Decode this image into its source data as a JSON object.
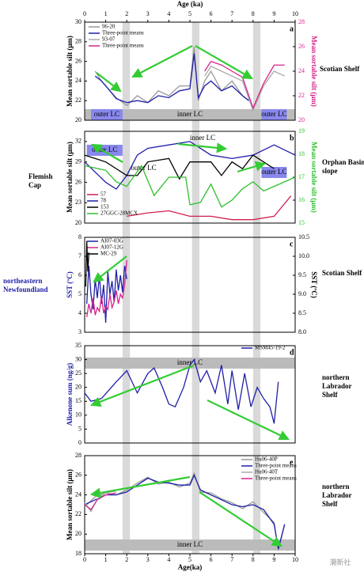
{
  "axis": {
    "title": "Age (ka)",
    "xlabel": "Age(ka)",
    "xlim": [
      0,
      10
    ],
    "xticks": [
      0,
      1,
      2,
      3,
      4,
      5,
      6,
      7,
      8,
      9,
      10
    ]
  },
  "watermark": "潮新社",
  "chart_data": [
    {
      "type": "line",
      "letter": "a",
      "ylabel": "Mean sortable silt (μm)",
      "ylabel_color": "#000000",
      "y2label": "Mean sortable silt (μm)",
      "y2label_color": "#d6248c",
      "side_label": "Scotian Shelf",
      "ylim": [
        20,
        30
      ],
      "yticks": [
        20,
        22,
        24,
        26,
        28,
        30
      ],
      "y2lim": [
        20,
        28
      ],
      "y2ticks": [
        20,
        22,
        24,
        26,
        28
      ],
      "annotations": [
        "outer LC",
        "inner LC",
        "outer LC"
      ],
      "series": [
        {
          "name": "96-20",
          "color": "#999999",
          "x": [
            0.5,
            0.8,
            1.2,
            1.5,
            2,
            2.5,
            3,
            3.5,
            4,
            4.5,
            5,
            5.2,
            5.4,
            5.7,
            6,
            6.5,
            7,
            7.5,
            7.8
          ],
          "values": [
            25,
            24,
            23,
            22.3,
            21.5,
            22.5,
            21.8,
            23,
            22.5,
            23.5,
            23.5,
            27.5,
            22,
            24,
            25,
            23,
            24,
            22.5,
            22
          ]
        },
        {
          "name": "Three-point means",
          "color": "#1f1fa8",
          "x": [
            0.5,
            0.8,
            1.2,
            1.5,
            2,
            2.5,
            3,
            3.5,
            4,
            4.5,
            5,
            5.2,
            5.4,
            5.7,
            6,
            6.5,
            7,
            7.5,
            7.8
          ],
          "values": [
            24.5,
            24,
            23,
            22.2,
            21.8,
            22,
            21.8,
            22.5,
            22.3,
            23,
            23.2,
            26.8,
            22.3,
            23.5,
            24,
            23,
            23.5,
            22.5,
            22
          ]
        },
        {
          "name": "93-07",
          "color": "#aaaaaa",
          "x": [
            5.7,
            6,
            6.5,
            7,
            7.5,
            8,
            8.5,
            9,
            9.5
          ],
          "values": [
            24.5,
            25.5,
            25,
            24.5,
            24,
            21,
            23.5,
            25,
            24.5
          ]
        },
        {
          "name": "Three-point means",
          "color": "#d6248c",
          "axis": "y2",
          "x": [
            5.7,
            6,
            6.5,
            7,
            7.5,
            8,
            8.5,
            9,
            9.5
          ],
          "values": [
            24,
            24.8,
            24.5,
            24,
            23.5,
            21,
            23,
            24.5,
            24.5
          ]
        }
      ]
    },
    {
      "type": "line",
      "letter": "b",
      "ylabel": "Mean sortable silt (μm)",
      "ylabel_color": "#000000",
      "y2label": "Mean sortable silt (μm)",
      "y2label_color": "#2fbf2f",
      "side_label": "Orphan Basin slope",
      "left_label": "Flemish Cap",
      "ylim": [
        20,
        33.5
      ],
      "yticks": [
        20,
        23,
        26,
        29,
        32
      ],
      "y2lim": [
        15,
        19
      ],
      "y2ticks": [
        15,
        16,
        17,
        18,
        19
      ],
      "annotations": [
        "outer LC",
        "inner LC",
        "outer LC",
        "outer LC"
      ],
      "series": [
        {
          "name": "57",
          "color": "#d02050",
          "x": [
            2,
            3,
            4,
            5,
            6,
            7,
            8,
            9,
            9.8
          ],
          "values": [
            21,
            21.5,
            21.8,
            21,
            21,
            20.5,
            20.5,
            21,
            24
          ]
        },
        {
          "name": "78",
          "color": "#1f1fa8",
          "x": [
            0,
            1,
            1.5,
            2,
            2.5,
            3,
            4,
            5,
            6,
            7,
            8,
            9,
            10
          ],
          "values": [
            29,
            26,
            25,
            27,
            30,
            31,
            31.5,
            32,
            30,
            29.5,
            30,
            31.5,
            30
          ]
        },
        {
          "name": "153",
          "color": "#000000",
          "x": [
            0,
            1,
            1.5,
            2,
            2.5,
            3,
            4,
            4.5,
            5,
            6,
            6.5,
            7,
            7.5,
            8,
            8.5,
            9
          ],
          "values": [
            30,
            29,
            28,
            27,
            27,
            29,
            29.5,
            26.5,
            29,
            29,
            27,
            29,
            28,
            30,
            29,
            28
          ]
        },
        {
          "name": "27GGC-28MCX",
          "color": "#2fbf2f",
          "axis": "y2",
          "x": [
            0,
            1,
            1.5,
            2,
            2.7,
            3.3,
            4,
            4.8,
            5,
            5.5,
            6,
            6.5,
            7,
            7.5,
            8,
            8.5,
            9,
            10
          ],
          "values": [
            17.5,
            17.3,
            16.8,
            16.6,
            17.5,
            16.2,
            17,
            17,
            15.8,
            15.9,
            16.7,
            15.7,
            16,
            16.5,
            16.8,
            16.4,
            16.6,
            17
          ]
        }
      ]
    },
    {
      "type": "line",
      "letter": "c",
      "ylabel": "SST (ºC)",
      "ylabel_color": "#1f1fa8",
      "y2label": "SST (ºC)",
      "y2label_color": "#000000",
      "side_label": "Scotian Shelf",
      "left_label": "northeastern Newfoundland",
      "ylim": [
        3,
        8
      ],
      "yticks": [
        3,
        4,
        5,
        6,
        7,
        8
      ],
      "y2lim": [
        8,
        10.5
      ],
      "y2ticks": [
        {
          "value": 8,
          "label": "8.0"
        },
        {
          "value": 8.5,
          "label": "8.5"
        },
        {
          "value": 9,
          "label": "9.0"
        },
        {
          "value": 9.5,
          "label": "9.5"
        },
        {
          "value": 10,
          "label": "10.0"
        },
        {
          "value": 10.5,
          "label": "10.5"
        }
      ],
      "annotations": [],
      "series": [
        {
          "name": "AI07-03G",
          "color": "#1f1fa8",
          "x": [
            0.1,
            0.2,
            0.3,
            0.4,
            0.5,
            0.6,
            0.7,
            0.8,
            0.9,
            1,
            1.1,
            1.2,
            1.3,
            1.4,
            1.5,
            1.6,
            1.7,
            1.8,
            1.9,
            2
          ],
          "values": [
            4.5,
            6.5,
            5,
            4.2,
            5.8,
            4.8,
            6,
            4.5,
            5.5,
            3.5,
            6.2,
            5,
            5.7,
            4.6,
            6.3,
            5.2,
            6,
            5.1,
            6.5,
            5.8
          ]
        },
        {
          "name": "AI07-12G",
          "color": "#d6248c",
          "x": [
            0.1,
            0.2,
            0.3,
            0.4,
            0.5,
            0.6,
            0.7,
            0.8,
            0.9,
            1,
            1.1,
            1.2,
            1.3,
            1.4,
            1.5,
            1.6,
            1.7,
            1.8,
            1.9,
            2
          ],
          "values": [
            3.8,
            4.5,
            4,
            4.8,
            3.9,
            4.3,
            4.1,
            4.9,
            4,
            4.4,
            4.2,
            5,
            4.3,
            4.6,
            5.2,
            4.5,
            5,
            4.8,
            5.5,
            6.8
          ]
        },
        {
          "name": "MC-29",
          "color": "#000000",
          "axis": "y2",
          "x": [
            0.05,
            0.1,
            0.15,
            0.2
          ],
          "values": [
            9.2,
            10.4,
            9.6,
            10.1
          ]
        }
      ]
    },
    {
      "type": "line",
      "letter": "d",
      "ylabel": "Alkenone sum (ng/g)",
      "ylabel_color": "#1f1fa8",
      "side_label": "northern Labrador Shelf",
      "ylim": [
        0,
        35
      ],
      "yticks": [
        0,
        5,
        10,
        15,
        20,
        25,
        30,
        35
      ],
      "annotations": [
        "inner LC"
      ],
      "series": [
        {
          "name": "MSM45-19-2",
          "color": "#1f1fa8",
          "x": [
            0,
            0.3,
            0.8,
            1.5,
            2,
            2.5,
            3,
            3.3,
            3.7,
            4,
            4.3,
            4.7,
            5,
            5.2,
            5.5,
            5.8,
            6.2,
            6.5,
            6.8,
            7,
            7.3,
            7.6,
            7.9,
            8.2,
            8.5,
            8.8,
            9,
            9.2
          ],
          "values": [
            18,
            15,
            16,
            22,
            26,
            18,
            25,
            27,
            20,
            14,
            13,
            20,
            28,
            30,
            22,
            26,
            18,
            28,
            14,
            26,
            12,
            25,
            13,
            20,
            16,
            13,
            7,
            22
          ]
        }
      ]
    },
    {
      "type": "line",
      "letter": "e",
      "ylabel": "Mean sortable silt (μm)",
      "ylabel_color": "#000000",
      "side_label": "northern Labrador Shelf",
      "ylim": [
        18,
        28
      ],
      "yticks": [
        18,
        20,
        22,
        24,
        26,
        28
      ],
      "annotations": [
        "inner LC"
      ],
      "series": [
        {
          "name": "Hu06-40P",
          "color": "#999999",
          "x": [
            0,
            0.5,
            1,
            1.5,
            2,
            2.5,
            3,
            3.5,
            4,
            4.5,
            5,
            5.2,
            5.5,
            6,
            6.5,
            7,
            7.5,
            8,
            8.5,
            9,
            9.2,
            9.5
          ],
          "values": [
            22.8,
            23.8,
            24.2,
            24,
            24.5,
            25.2,
            25.8,
            25.1,
            25.3,
            24.8,
            25.2,
            26.2,
            24.3,
            24.2,
            23.6,
            23.2,
            22.6,
            23.3,
            22.2,
            21.2,
            18.3,
            21
          ]
        },
        {
          "name": "Three-point means",
          "color": "#1f1fa8",
          "x": [
            0,
            0.5,
            1,
            1.5,
            2,
            2.5,
            3,
            3.5,
            4,
            4.5,
            5,
            5.2,
            5.5,
            6,
            6.5,
            7,
            7.5,
            8,
            8.5,
            9,
            9.2,
            9.5
          ],
          "values": [
            23,
            23.5,
            24,
            24,
            24.3,
            25,
            25.7,
            25.3,
            25.2,
            25,
            25,
            26,
            24.5,
            24,
            23.5,
            23,
            22.8,
            23,
            22.5,
            21,
            18.5,
            21
          ]
        },
        {
          "name": "Hu06-40T",
          "color": "#aaaaaa",
          "x": [
            0,
            0.3,
            0.6,
            1,
            1.5
          ],
          "values": [
            23.2,
            22.3,
            23.6,
            24.2,
            24.4
          ]
        },
        {
          "name": "Three-point means",
          "color": "#d6248c",
          "x": [
            0,
            0.3,
            0.6,
            1,
            1.5
          ],
          "values": [
            23,
            22.5,
            23.5,
            24,
            24.2
          ]
        }
      ]
    }
  ]
}
